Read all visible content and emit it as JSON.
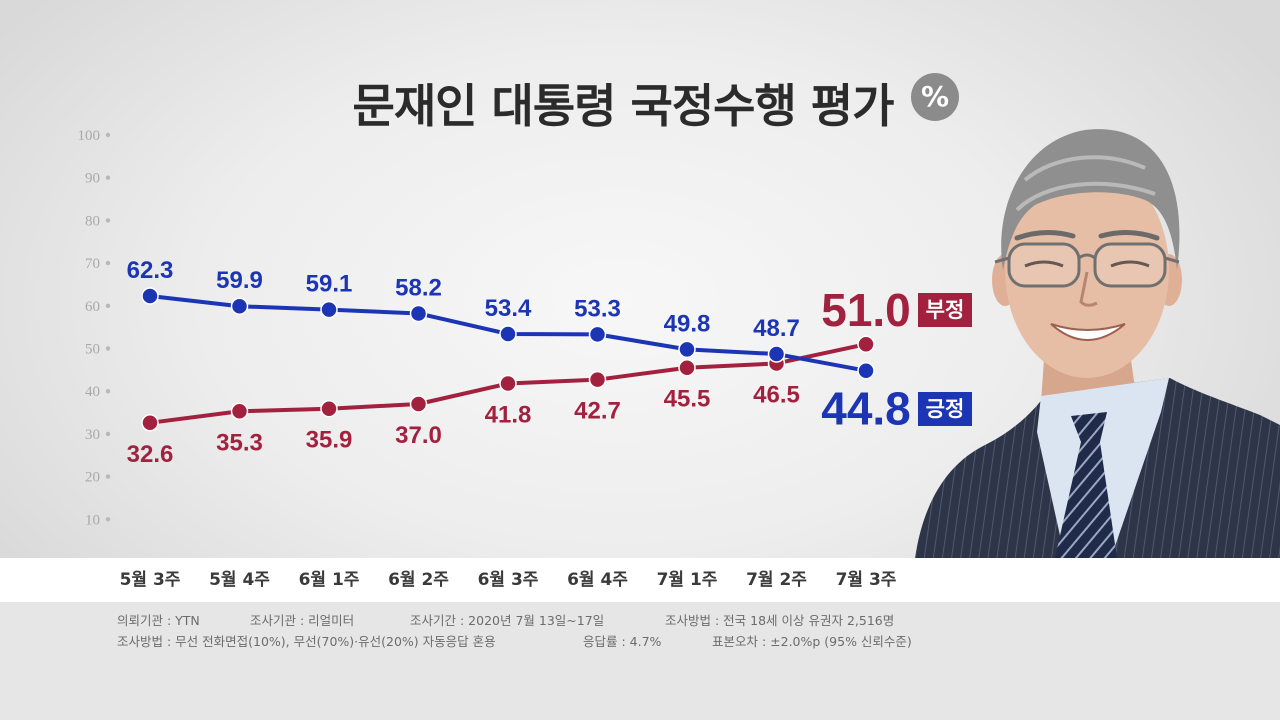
{
  "chart_data": {
    "type": "line",
    "title": "문재인 대통령 국정수행 평가",
    "unit": "%",
    "categories": [
      "5월 3주",
      "5월 4주",
      "6월 1주",
      "6월 2주",
      "6월 3주",
      "6월 4주",
      "7월 1주",
      "7월 2주",
      "7월 3주"
    ],
    "series": [
      {
        "name": "긍정",
        "values": [
          62.3,
          59.9,
          59.1,
          58.2,
          53.4,
          53.3,
          49.8,
          48.7,
          44.8
        ],
        "color": "#1c35b5"
      },
      {
        "name": "부정",
        "values": [
          32.6,
          35.3,
          35.9,
          37.0,
          41.8,
          42.7,
          45.5,
          46.5,
          51.0
        ],
        "color": "#a2213f"
      }
    ],
    "ylim": [
      0,
      100
    ],
    "yticks": [
      100,
      90,
      80,
      70,
      60,
      50,
      40,
      30,
      20,
      10
    ],
    "legend": "right",
    "grid": false
  },
  "colors": {
    "title": "#2b2b2b",
    "unit_badge": "#8b8b8b",
    "axis_text": "#a9a9a9"
  },
  "footer": {
    "line1": [
      "의뢰기관 : YTN",
      "조사기관 : 리얼미터",
      "조사기간 : 2020년 7월 13일~17일",
      "조사방법 : 전국 18세 이상 유권자 2,516명"
    ],
    "line2": [
      "조사방법 : 무선 전화면접(10%), 무선(70%)·유선(20%) 자동응답 혼용",
      "응답률 : 4.7%",
      "표본오차 : ±2.0%p (95% 신뢰수준)"
    ]
  }
}
